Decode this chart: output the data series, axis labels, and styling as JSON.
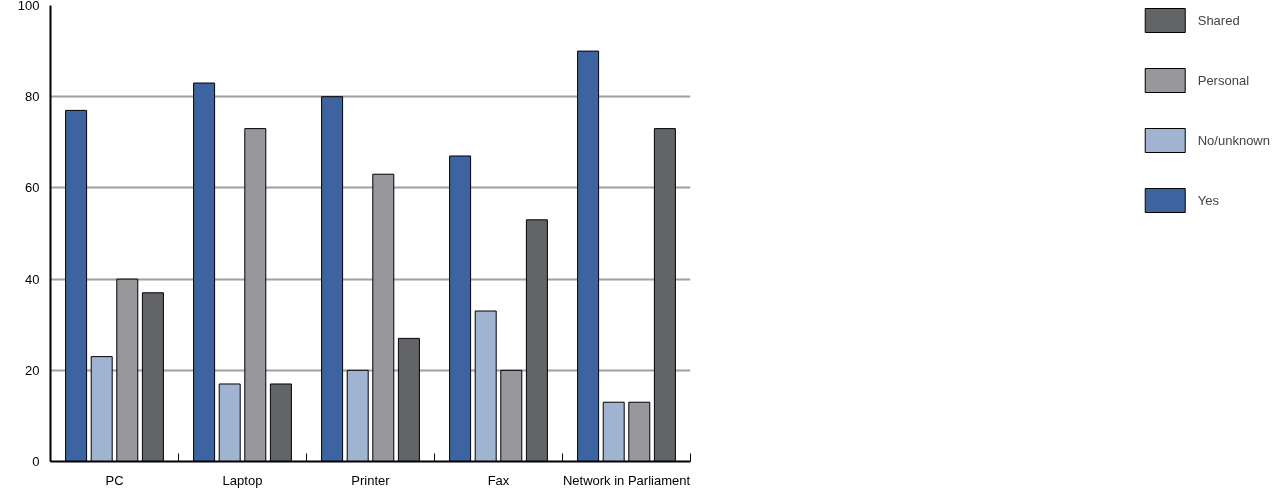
{
  "chart_data": {
    "type": "bar",
    "categories": [
      "PC",
      "Laptop",
      "Printer",
      "Fax",
      "Network in Parliament"
    ],
    "series": [
      {
        "name": "Yes",
        "color": "#3d64a0",
        "values": [
          77,
          83,
          80,
          67,
          90
        ]
      },
      {
        "name": "No/unknown",
        "color": "#a0b4d2",
        "values": [
          23,
          17,
          20,
          33,
          13
        ]
      },
      {
        "name": "Personal",
        "color": "#96989c",
        "values": [
          40,
          73,
          63,
          20,
          13
        ]
      },
      {
        "name": "Shared",
        "color": "#626468",
        "values": [
          37,
          17,
          27,
          53,
          73
        ]
      }
    ],
    "ylim": [
      0,
      100
    ],
    "yticks": [
      0,
      20,
      40,
      60,
      80,
      100
    ],
    "grid": "y",
    "legend": "right"
  }
}
